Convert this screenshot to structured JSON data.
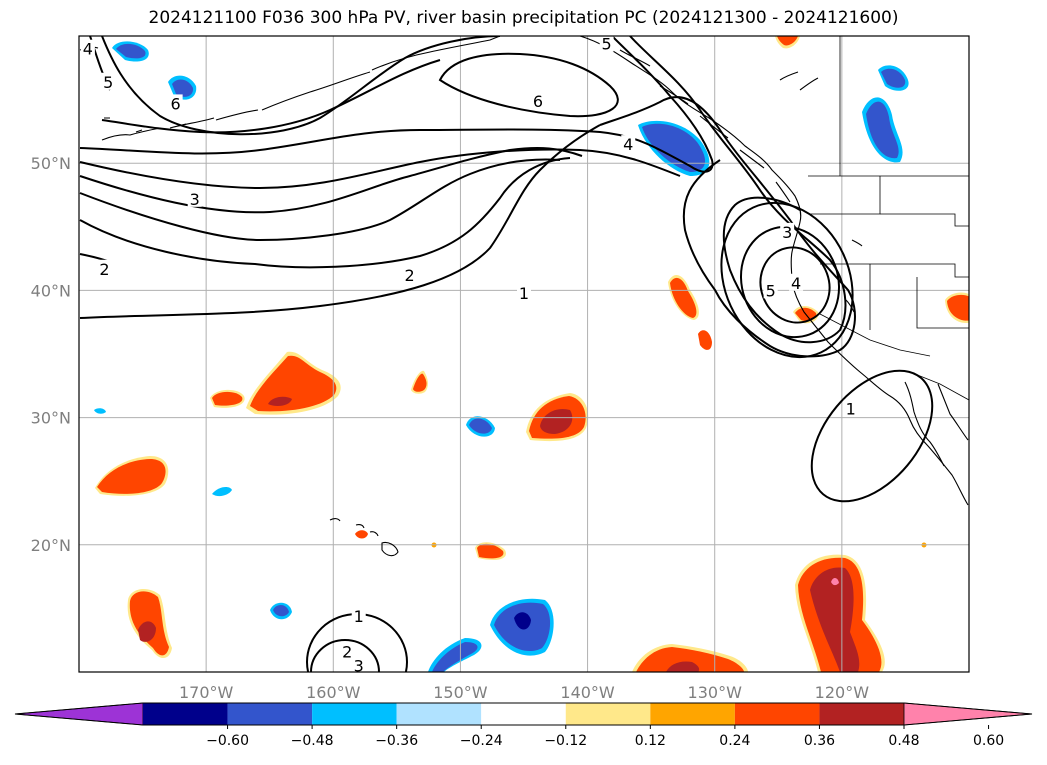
{
  "title": "2024121100 F036 300 hPa PV, river basin precipitation PC (2024121300 - 2024121600)",
  "map": {
    "lon_range": [
      -180,
      -110
    ],
    "lat_range": [
      10,
      60
    ],
    "lon_ticks": [
      {
        "value": -170,
        "label": "170°W"
      },
      {
        "value": -160,
        "label": "160°W"
      },
      {
        "value": -150,
        "label": "150°W"
      },
      {
        "value": -140,
        "label": "140°W"
      },
      {
        "value": -130,
        "label": "130°W"
      },
      {
        "value": -120,
        "label": "120°W"
      }
    ],
    "lat_ticks": [
      {
        "value": 20,
        "label": "20°N"
      },
      {
        "value": 30,
        "label": "30°N"
      },
      {
        "value": 40,
        "label": "40°N"
      },
      {
        "value": 50,
        "label": "50°N"
      }
    ],
    "grid": true
  },
  "pv_contour_labels": [
    {
      "text": "4",
      "lon": -179.3,
      "lat": 59.0
    },
    {
      "text": "5",
      "lon": -177.7,
      "lat": 56.4
    },
    {
      "text": "6",
      "lon": -172.4,
      "lat": 54.7
    },
    {
      "text": "5",
      "lon": -138.5,
      "lat": 59.4
    },
    {
      "text": "6",
      "lon": -143.9,
      "lat": 54.9
    },
    {
      "text": "4",
      "lon": -136.8,
      "lat": 51.5
    },
    {
      "text": "3",
      "lon": -170.9,
      "lat": 47.2
    },
    {
      "text": "2",
      "lon": -178.0,
      "lat": 41.7
    },
    {
      "text": "2",
      "lon": -154.0,
      "lat": 41.2
    },
    {
      "text": "1",
      "lon": -145.0,
      "lat": 39.8
    },
    {
      "text": "3",
      "lon": -124.3,
      "lat": 44.6
    },
    {
      "text": "4",
      "lon": -123.6,
      "lat": 40.6
    },
    {
      "text": "5",
      "lon": -125.6,
      "lat": 40.0
    },
    {
      "text": "1",
      "lon": -119.3,
      "lat": 30.7
    },
    {
      "text": "1",
      "lon": -158.0,
      "lat": 14.4
    },
    {
      "text": "2",
      "lon": -158.9,
      "lat": 11.6
    },
    {
      "text": "3",
      "lon": -158.0,
      "lat": 10.5
    }
  ],
  "colorbar": {
    "levels": [
      -0.6,
      -0.48,
      -0.36,
      -0.24,
      -0.12,
      0.12,
      0.24,
      0.36,
      0.48,
      0.6
    ],
    "tick_labels": [
      "−0.60",
      "−0.48",
      "−0.36",
      "−0.24",
      "−0.12",
      "0.12",
      "0.24",
      "0.36",
      "0.48",
      "0.60"
    ],
    "colors": [
      "#9d33d6",
      "#00008b",
      "#3355cc",
      "#00bfff",
      "#b0e2ff",
      "#ffffff",
      "#ffe88a",
      "#ffa500",
      "#ff4500",
      "#b22222",
      "#ff82ab"
    ],
    "extend": "both"
  }
}
